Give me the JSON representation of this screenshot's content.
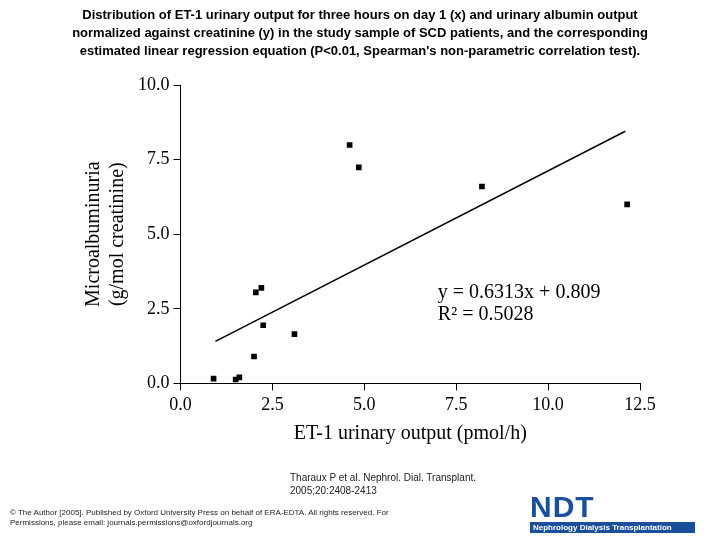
{
  "chart_data": {
    "type": "scatter",
    "title": [
      "Distribution of ET-1 urinary output for three hours on day 1 (x) and urinary albumin output",
      "normalized against creatinine (y) in the study sample of SCD patients, and the corresponding",
      "estimated linear regression equation (P<0.01, Spearman's non-parametric correlation test)."
    ],
    "x_label": "ET-1 urinary output (pmol/h)",
    "y_label": [
      "Microalbuminuria",
      "(g/mol creatinine)"
    ],
    "x": [
      0.9,
      1.5,
      1.6,
      2.0,
      2.05,
      2.2,
      2.25,
      3.1,
      4.6,
      4.85,
      8.2,
      12.15
    ],
    "values": [
      0.16,
      0.13,
      0.2,
      0.9,
      3.05,
      3.2,
      1.95,
      1.65,
      7.99,
      7.24,
      6.6,
      6.0
    ],
    "color": "#000000",
    "marker": "square",
    "trend_line": {
      "x": [
        0.95,
        12.1
      ],
      "values": [
        1.41,
        8.45
      ],
      "color": "#000000",
      "line_style": "solid"
    },
    "annotations": [
      "y = 0.6313x + 0.809",
      "R² = 0.5028"
    ],
    "xlim": [
      0,
      12.5
    ],
    "xticks": [
      {
        "value": 0,
        "label": "0.0"
      },
      2.5,
      {
        "value": 5,
        "label": "5.0"
      },
      7.5,
      {
        "value": 10,
        "label": "10.0"
      },
      12.5
    ],
    "ylim": [
      0,
      10
    ],
    "yticks": [
      {
        "value": 0,
        "label": "0.0"
      },
      2.5,
      {
        "value": 5,
        "label": "5.0"
      },
      7.5,
      {
        "value": 10,
        "label": "10.0"
      }
    ],
    "grid": false
  },
  "footer": {
    "citation": "Tharaux P et al. Nephrol. Dial. Transplant. 2005;20:2408-2413",
    "copyright": "© The Author [2005]. Published by Oxford University Press on behalf of ERA-EDTA. All rights reserved. For Permissions, please email: journals.permissions@oxfordjournals.org",
    "logo": "NDT",
    "logo_subtitle": "Nephrology Dialysis Transplantation"
  }
}
